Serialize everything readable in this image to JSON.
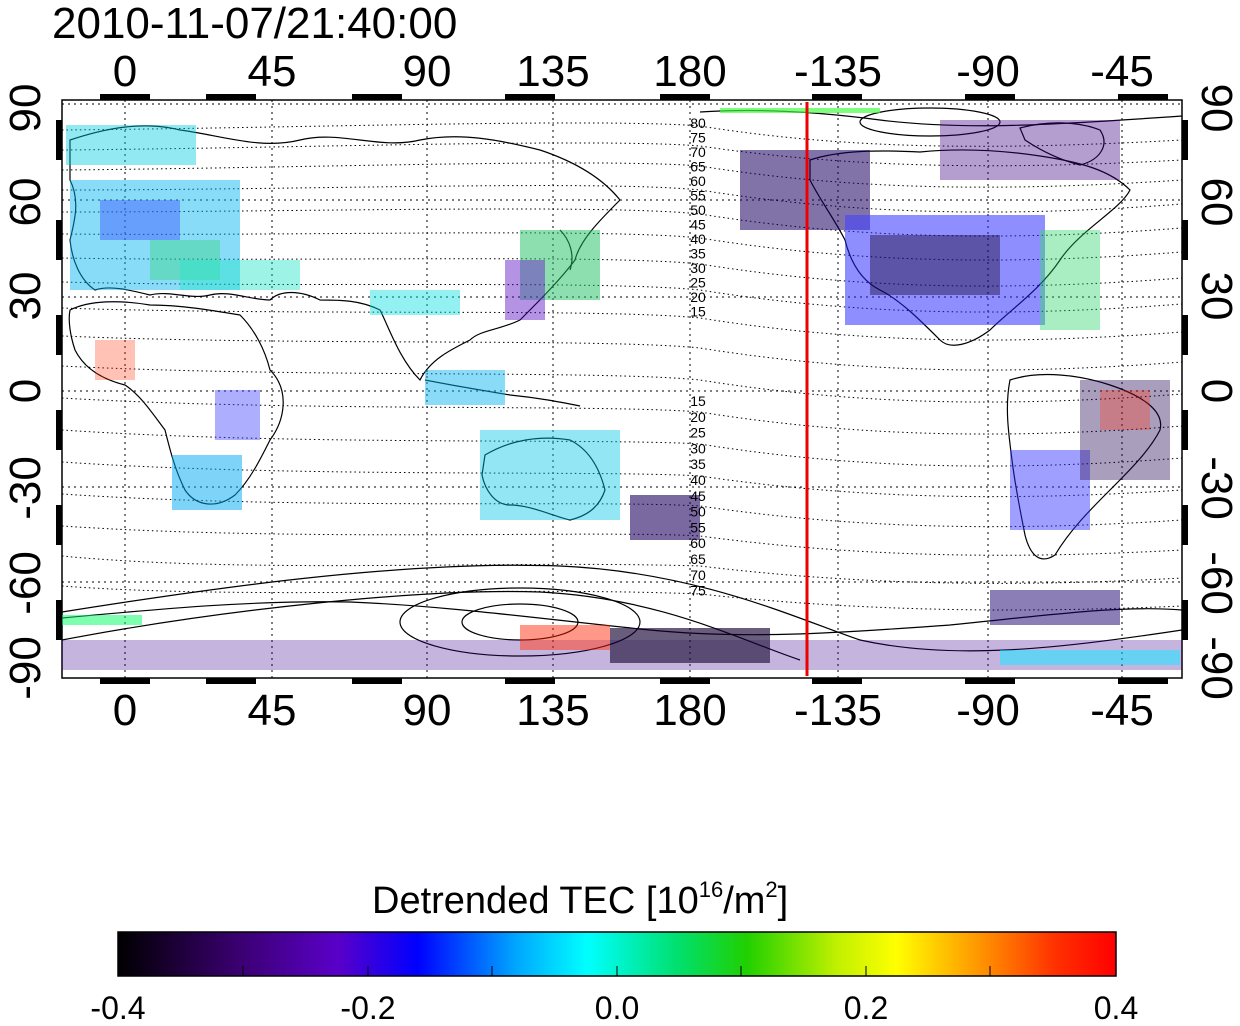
{
  "timestamp": "2010-11-07/21:40:00",
  "map": {
    "top_lon_labels": [
      "0",
      "45",
      "90",
      "135",
      "180",
      "-135",
      "-90",
      "-45"
    ],
    "bottom_lon_labels": [
      "0",
      "45",
      "90",
      "135",
      "180",
      "-135",
      "-90",
      "-45"
    ],
    "left_lat_labels": [
      "90",
      "60",
      "30",
      "0",
      "-30",
      "-60",
      "-90"
    ],
    "right_lat_labels": [
      "90",
      "60",
      "30",
      "0",
      "-30",
      "-60",
      "-90"
    ],
    "contour_labels_north": [
      "80",
      "75",
      "70",
      "65",
      "60",
      "55",
      "50",
      "45",
      "40",
      "35",
      "30",
      "25",
      "20",
      "15"
    ],
    "contour_labels_south": [
      "15",
      "20",
      "25",
      "30",
      "35",
      "40",
      "45",
      "50",
      "55",
      "60",
      "65",
      "70",
      "75"
    ],
    "terminator_line_color": "#ee0000"
  },
  "colorbar": {
    "title_main": "Detrended TEC  [10",
    "title_exp1": "16",
    "title_mid": "/m",
    "title_exp2": "2",
    "title_end": "]",
    "tick_labels": [
      "-0.4",
      "-0.2",
      "0.0",
      "0.2",
      "0.4"
    ],
    "range": [
      -0.4,
      0.4
    ],
    "colors": [
      "#000000",
      "#3a0070",
      "#6a00c0",
      "#0000ff",
      "#00a8ff",
      "#00ffff",
      "#00e080",
      "#00cc00",
      "#80e000",
      "#ffff00",
      "#ff9900",
      "#ff4400",
      "#ff0000"
    ]
  }
}
